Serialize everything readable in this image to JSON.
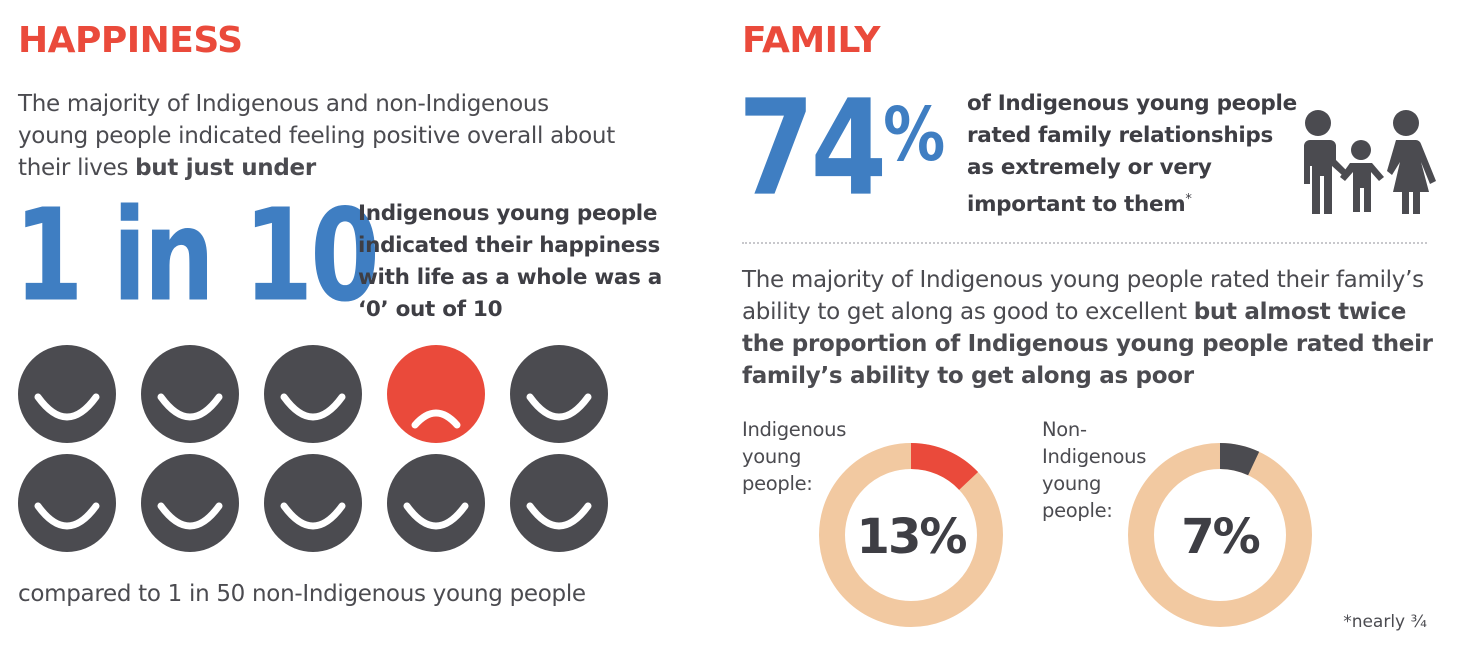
{
  "happiness": {
    "title": "HAPPINESS",
    "intro_line1": "The majority of Indigenous and non-Indigenous",
    "intro_line2": "young people indicated feeling positive overall about",
    "intro_line3_plain": "their lives ",
    "intro_line3_bold": "but just under",
    "big_stat": "1 in 10",
    "stat_desc": [
      "Indigenous young people",
      "indicated their happiness",
      "with life as a whole was a",
      "‘0’ out of 10"
    ],
    "faces": [
      {
        "mood": "happy"
      },
      {
        "mood": "happy"
      },
      {
        "mood": "happy"
      },
      {
        "mood": "sad"
      },
      {
        "mood": "happy"
      },
      {
        "mood": "happy"
      },
      {
        "mood": "happy"
      },
      {
        "mood": "happy"
      },
      {
        "mood": "happy"
      },
      {
        "mood": "happy"
      }
    ],
    "comparison": "compared to 1 in 50 non-Indigenous young people"
  },
  "family": {
    "title": "FAMILY",
    "big_stat_number": "74",
    "big_stat_percent": "%",
    "stat_desc": [
      "of Indigenous young people",
      "rated family relationships",
      "as extremely or very",
      "important to them"
    ],
    "stat_desc_mark": "*",
    "intro_plain": "The majority of Indigenous young people rated their family’s",
    "intro_plain2": "ability to get along as good to excellent ",
    "intro_bold1": "but almost twice",
    "intro_bold2": "the proportion of Indigenous young people rated their",
    "intro_bold3": "family’s ability to get along as poor",
    "donuts": [
      {
        "label": [
          "Indigenous",
          "young",
          "people:"
        ],
        "value_label": "13%",
        "value": 13,
        "color": "#ea4a3b"
      },
      {
        "label": [
          "Non-",
          "Indigenous",
          "young",
          "people:"
        ],
        "value_label": "7%",
        "value": 7,
        "color": "#4b4b50"
      }
    ],
    "footnote": "*nearly ¾"
  },
  "colors": {
    "accent": "#ea4a3b",
    "blue": "#3f7ec2",
    "dark": "#4b4b50",
    "ring": "#f2c9a1"
  },
  "icons": [
    "sad-face-icon",
    "happy-face-icon",
    "family-icon"
  ]
}
